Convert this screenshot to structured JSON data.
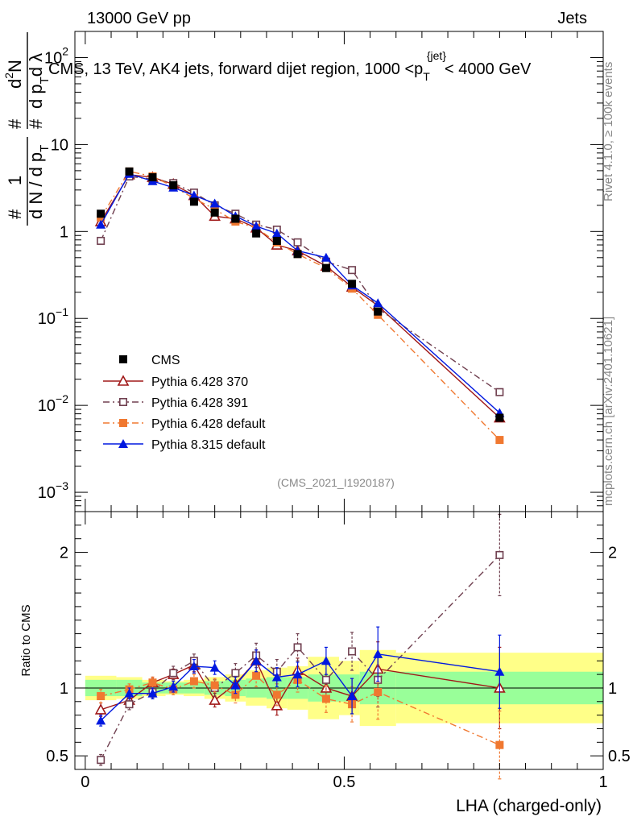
{
  "header": {
    "left": "13000 GeV pp",
    "right": "Jets"
  },
  "side_labels": {
    "rivet": "Rivet 4.1.0, ≥ 100k events",
    "mcplots": "mcplots.cern.ch [arXiv:2401.10621]"
  },
  "chart_data": {
    "type": "scatter",
    "title": "CMS, 13 TeV, AK4 jets, forward dijet region, 1000 <p_T^{jet}< 4000 GeV",
    "title_parts": {
      "prefix": "CMS, 13 TeV, AK4 jets, forward dijet region, 1000 <p",
      "sub": "T",
      "sup": "{jet}",
      "suffix": "< 4000 GeV"
    },
    "analysis_id": "(CMS_2021_I1920187)",
    "xlabel": "LHA (charged-only)",
    "ylabel_top": "1/(dN/dp_T) d²N/(dp_T dλ)",
    "ylabel_top_glyphs": {
      "hash1": "#",
      "one": "1",
      "dN": "d N / d p",
      "T1": "T",
      "hash2": "#",
      "d2N": "d",
      "two": "2",
      "N": "N",
      "hash3": "#",
      "dpdl": "d p",
      "T2": "T",
      "dl": "d λ"
    },
    "ylabel_bottom": "Ratio to CMS",
    "xlim": [
      -0.02,
      1.0
    ],
    "ylim_top": [
      0.0006,
      200
    ],
    "ylim_bottom": [
      0.4,
      2.3
    ],
    "x_ticks": [
      {
        "value": 0,
        "label": "0"
      },
      {
        "value": 0.5,
        "label": "0.5"
      },
      {
        "value": 1,
        "label": "1"
      }
    ],
    "y_ticks_top": [
      {
        "value": 0.001,
        "base": "10",
        "exp": "−3"
      },
      {
        "value": 0.01,
        "base": "10",
        "exp": "−2"
      },
      {
        "value": 0.1,
        "base": "10",
        "exp": "−1"
      },
      {
        "value": 1,
        "base": "1",
        "exp": ""
      },
      {
        "value": 10,
        "base": "10",
        "exp": ""
      },
      {
        "value": 100,
        "base": "10",
        "exp": "2"
      }
    ],
    "y_ticks_bottom": [
      {
        "value": 0.5,
        "label": "0.5"
      },
      {
        "value": 1,
        "label": "1"
      },
      {
        "value": 2,
        "label": "2"
      }
    ],
    "bins": [
      [
        0.0,
        0.06
      ],
      [
        0.06,
        0.11
      ],
      [
        0.11,
        0.155
      ],
      [
        0.155,
        0.19
      ],
      [
        0.19,
        0.23
      ],
      [
        0.23,
        0.27
      ],
      [
        0.27,
        0.31
      ],
      [
        0.31,
        0.35
      ],
      [
        0.35,
        0.39
      ],
      [
        0.39,
        0.43
      ],
      [
        0.43,
        0.49
      ],
      [
        0.49,
        0.53
      ],
      [
        0.53,
        0.6
      ],
      [
        0.6,
        1.0
      ]
    ],
    "x": [
      0.03,
      0.085,
      0.13,
      0.17,
      0.21,
      0.25,
      0.29,
      0.33,
      0.37,
      0.41,
      0.465,
      0.515,
      0.565,
      0.8
    ],
    "cms_band": {
      "stat_rel": [
        0.06,
        0.06,
        0.04,
        0.04,
        0.04,
        0.05,
        0.06,
        0.07,
        0.08,
        0.08,
        0.1,
        0.1,
        0.12,
        0.12
      ],
      "total_rel": [
        0.09,
        0.08,
        0.06,
        0.05,
        0.06,
        0.08,
        0.1,
        0.13,
        0.15,
        0.16,
        0.23,
        0.2,
        0.28,
        0.26
      ]
    },
    "series": [
      {
        "name": "CMS",
        "marker": "square-filled",
        "line": "none",
        "color": "#000000",
        "values": [
          1.6,
          4.9,
          4.2,
          3.4,
          2.2,
          1.65,
          1.4,
          0.95,
          0.78,
          0.55,
          0.38,
          0.25,
          0.12,
          0.0072
        ],
        "ratio": [
          1,
          1,
          1,
          1,
          1,
          1,
          1,
          1,
          1,
          1,
          1,
          1,
          1,
          1
        ]
      },
      {
        "name": "Pythia 6.428 370",
        "marker": "triangle-open",
        "line": "solid",
        "color": "#a01818",
        "values": [
          1.3,
          4.5,
          4.2,
          3.5,
          2.6,
          1.5,
          1.4,
          1.1,
          0.7,
          0.6,
          0.4,
          0.23,
          0.14,
          0.0072
        ],
        "ratio": [
          0.84,
          0.91,
          1.04,
          1.1,
          1.17,
          0.91,
          1.03,
          1.2,
          0.87,
          1.13,
          1.0,
          0.94,
          1.14,
          1.0
        ],
        "ratio_err": [
          0.05,
          0.04,
          0.04,
          0.04,
          0.05,
          0.05,
          0.06,
          0.08,
          0.07,
          0.09,
          0.1,
          0.13,
          0.2,
          0.3
        ]
      },
      {
        "name": "Pythia 6.428 391",
        "marker": "square-open",
        "line": "dashdot",
        "color": "#704050",
        "values": [
          0.78,
          4.3,
          4.0,
          3.6,
          2.8,
          2.0,
          1.6,
          1.2,
          1.05,
          0.75,
          0.45,
          0.36,
          0.13,
          0.0142
        ],
        "ratio": [
          0.47,
          0.88,
          0.97,
          1.11,
          1.2,
          1.0,
          1.11,
          1.24,
          1.12,
          1.3,
          1.06,
          1.27,
          1.06,
          1.98
        ],
        "ratio_err": [
          0.04,
          0.04,
          0.04,
          0.05,
          0.05,
          0.06,
          0.07,
          0.09,
          0.09,
          0.1,
          0.12,
          0.14,
          0.2,
          0.3
        ]
      },
      {
        "name": "Pythia 6.428 default",
        "marker": "square-filled",
        "line": "dashdot",
        "color": "#f07830",
        "values": [
          1.45,
          4.9,
          4.3,
          3.3,
          2.4,
          1.8,
          1.3,
          1.1,
          0.75,
          0.55,
          0.38,
          0.22,
          0.11,
          0.004
        ],
        "ratio": [
          0.94,
          0.99,
          1.04,
          0.99,
          1.05,
          1.02,
          0.95,
          1.09,
          0.95,
          1.06,
          0.92,
          0.88,
          0.97,
          0.58
        ],
        "ratio_err": [
          0.05,
          0.04,
          0.04,
          0.04,
          0.05,
          0.05,
          0.06,
          0.08,
          0.08,
          0.09,
          0.1,
          0.13,
          0.2,
          0.25
        ]
      },
      {
        "name": "Pythia 8.315 default",
        "marker": "triangle-filled",
        "line": "solid",
        "color": "#0018e0",
        "values": [
          1.2,
          4.6,
          3.8,
          3.2,
          2.6,
          2.1,
          1.5,
          1.15,
          0.95,
          0.6,
          0.5,
          0.24,
          0.15,
          0.0082
        ],
        "ratio": [
          0.76,
          0.96,
          0.96,
          1.01,
          1.16,
          1.15,
          1.02,
          1.2,
          1.08,
          1.1,
          1.2,
          0.94,
          1.25,
          1.12
        ],
        "ratio_err": [
          0.04,
          0.04,
          0.04,
          0.04,
          0.05,
          0.05,
          0.06,
          0.08,
          0.07,
          0.09,
          0.1,
          0.13,
          0.2,
          0.27
        ]
      }
    ],
    "legend_placement": "bottom-left"
  }
}
